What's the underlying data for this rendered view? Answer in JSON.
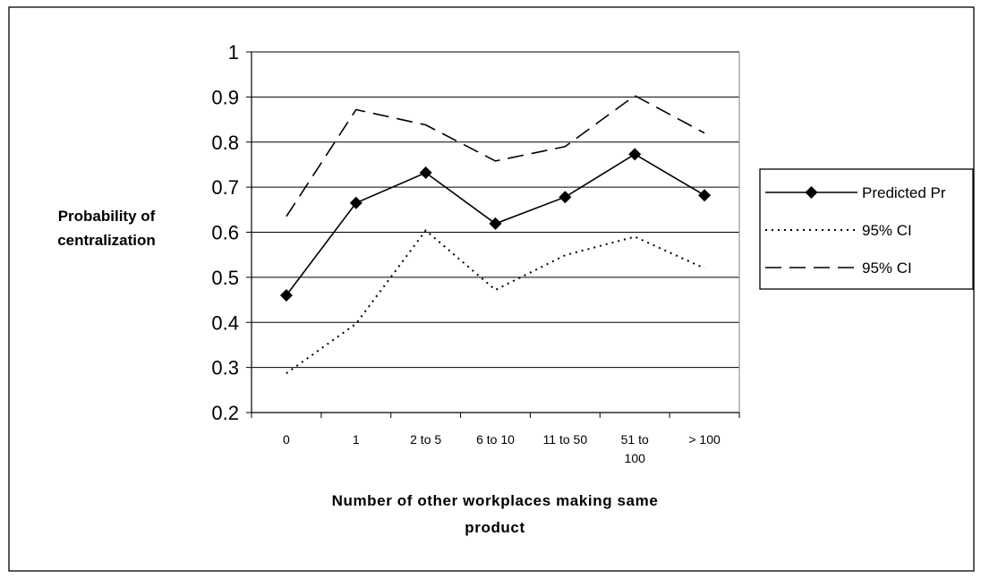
{
  "chart_data": {
    "type": "line",
    "title": "",
    "xlabel": [
      "Number of other workplaces making same",
      "product"
    ],
    "ylabel": [
      "Probability of",
      "centralization"
    ],
    "categories": [
      [
        "0"
      ],
      [
        "1"
      ],
      [
        "2 to 5"
      ],
      [
        "6 to 10"
      ],
      [
        "11 to 50"
      ],
      [
        "51 to",
        "100"
      ],
      [
        "> 100"
      ]
    ],
    "ylim": [
      0.2,
      1
    ],
    "yticks": [
      "1",
      "0.9",
      "0.8",
      "0.7",
      "0.6",
      "0.5",
      "0.4",
      "0.3",
      "0.2"
    ],
    "grid": true,
    "legend_position": "right",
    "series": [
      {
        "name": "Predicted Pr",
        "values": [
          0.46,
          0.665,
          0.732,
          0.619,
          0.678,
          0.773,
          0.682
        ],
        "style": "solid-diamond",
        "color": "#000000"
      },
      {
        "name": "95% CI",
        "values": [
          0.287,
          0.397,
          0.604,
          0.472,
          0.549,
          0.59,
          0.52
        ],
        "style": "dotted",
        "color": "#000000"
      },
      {
        "name": "95% CI",
        "values": [
          0.635,
          0.872,
          0.838,
          0.758,
          0.79,
          0.903,
          0.82
        ],
        "style": "dashed",
        "color": "#000000"
      }
    ]
  }
}
